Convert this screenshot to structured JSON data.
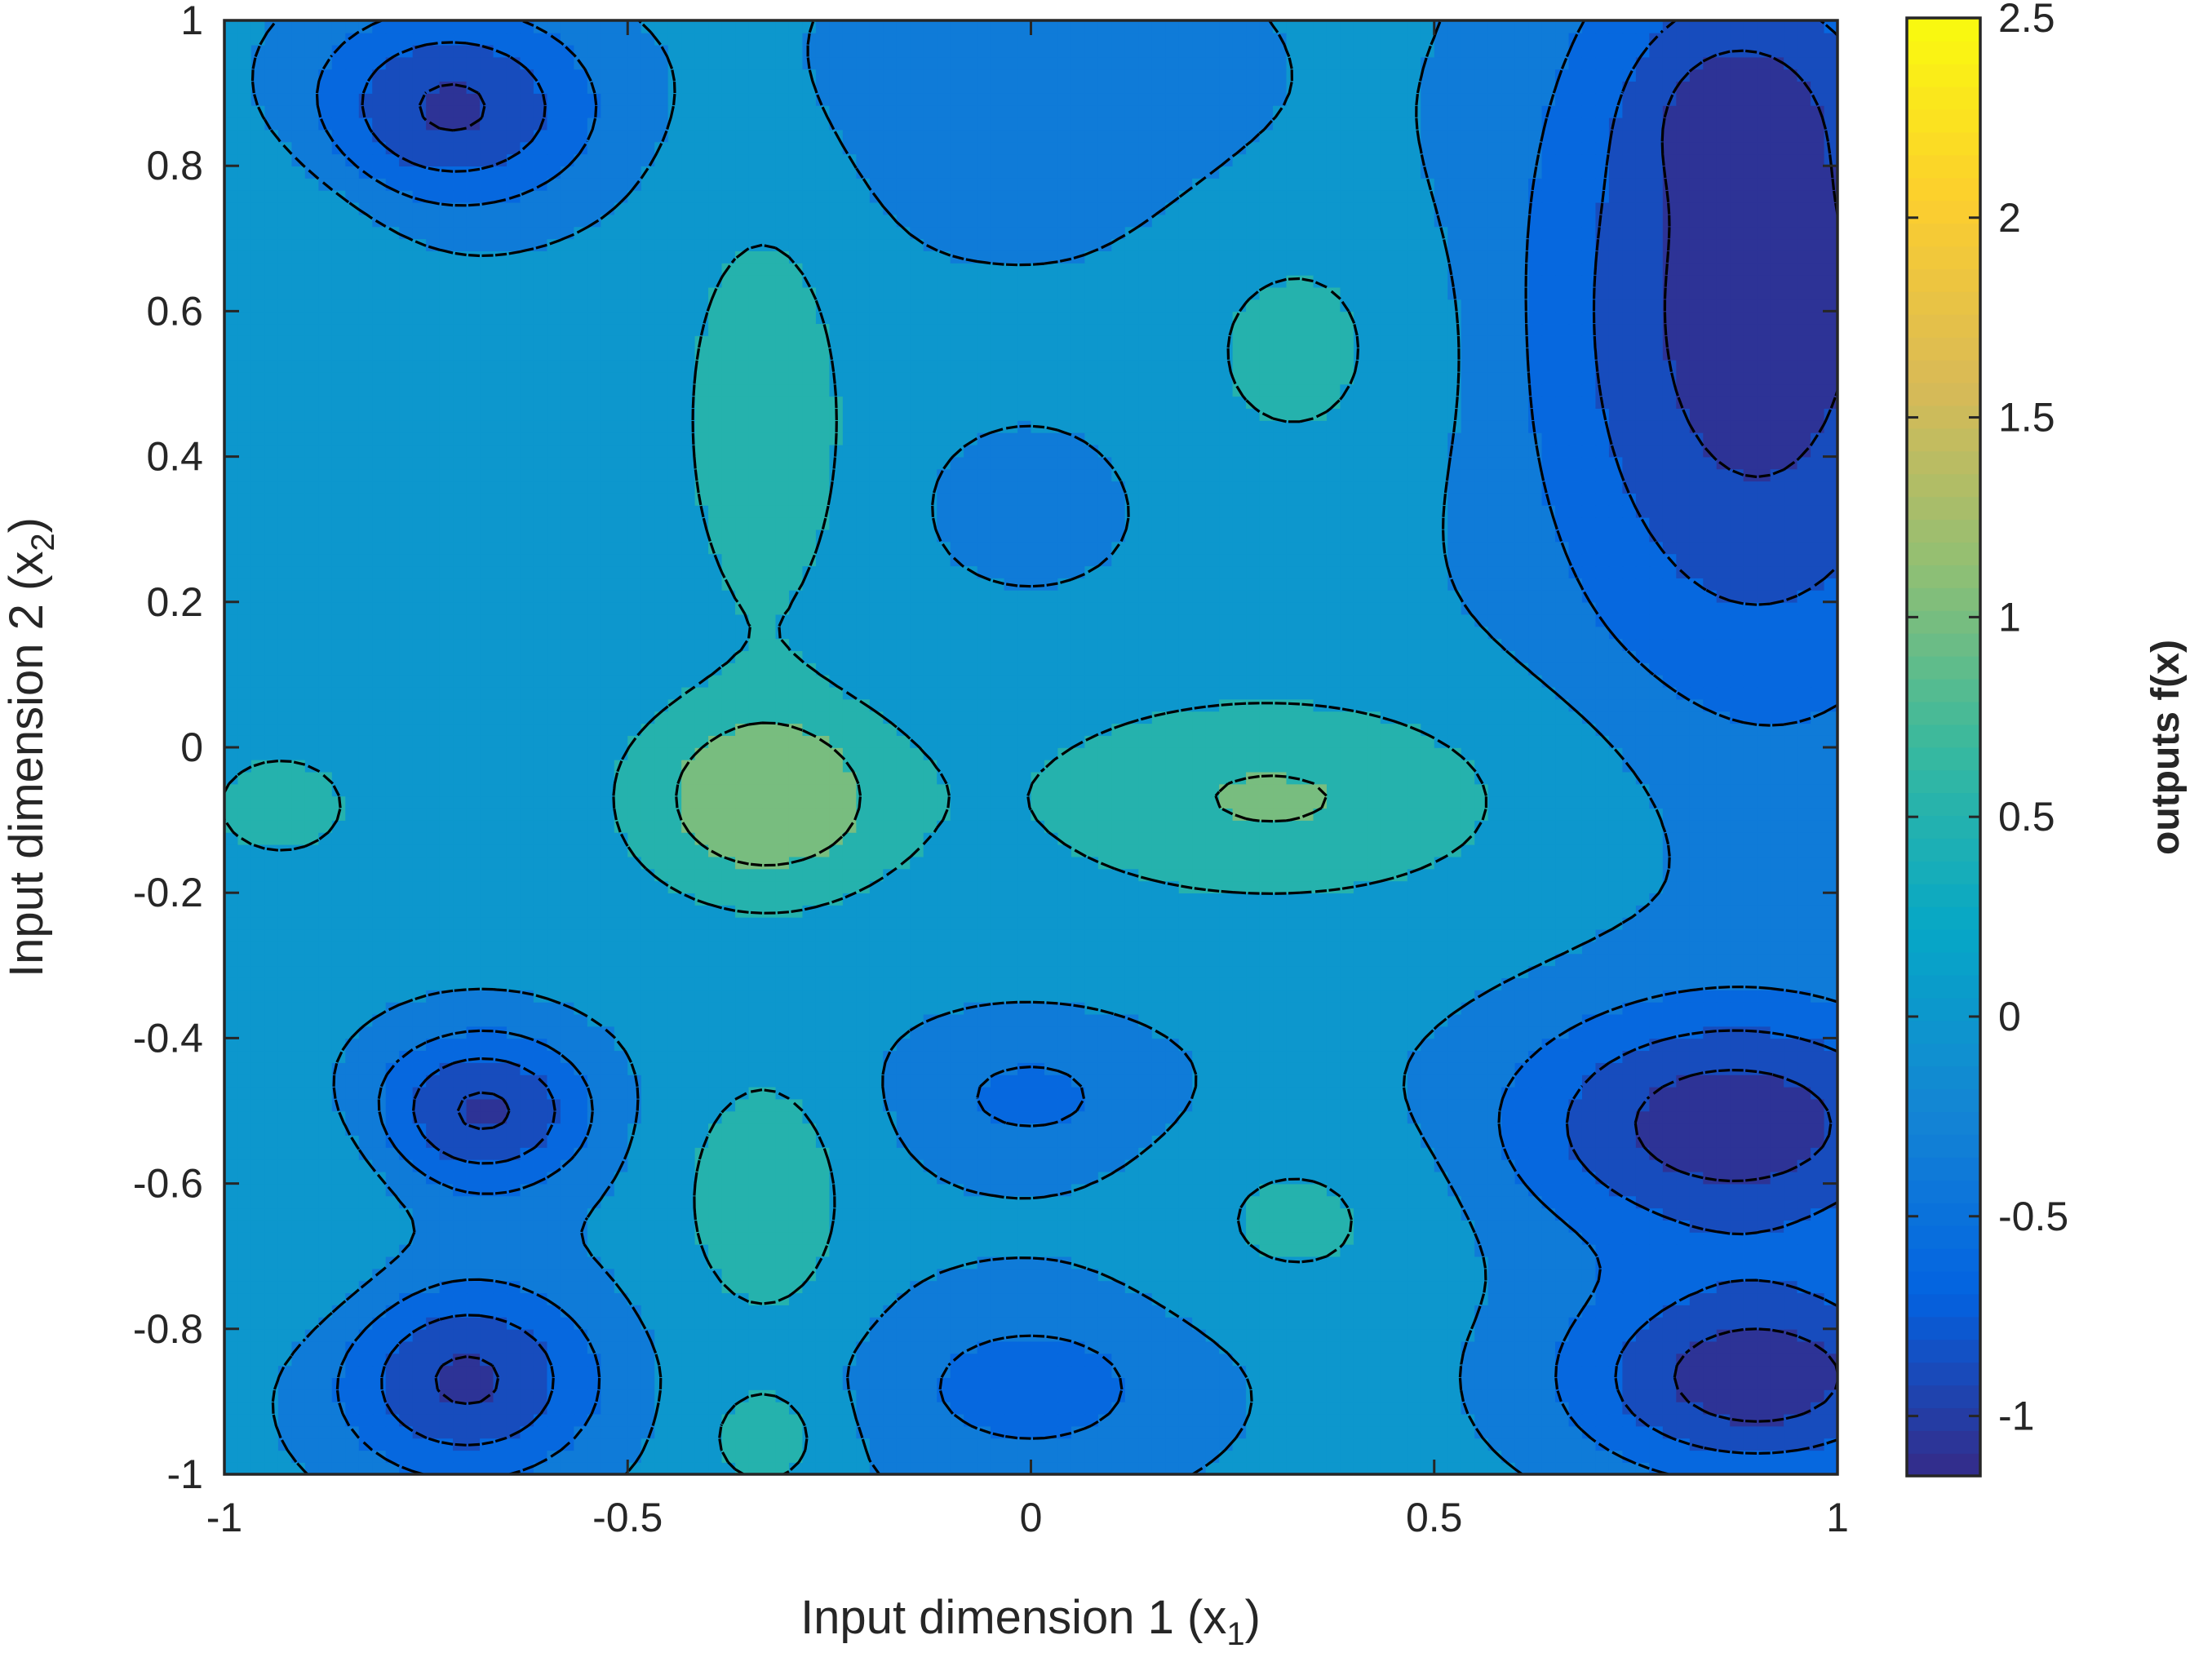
{
  "chart_data": {
    "type": "heatmap",
    "subtype": "filled-contour",
    "title": "",
    "xlabel": {
      "text": "Input dimension 1 (x",
      "sub": "1",
      "close": ")"
    },
    "ylabel": {
      "text": "Input dimension 2 (x",
      "sub": "2",
      "close": ")"
    },
    "colorbar_label": "outputs f(x)",
    "xlim": [
      -1,
      1
    ],
    "ylim": [
      -1,
      1
    ],
    "clim": [
      -1.15,
      2.5
    ],
    "x_ticks": [
      -1,
      -0.5,
      0,
      0.5,
      1
    ],
    "x_tick_labels": [
      "-1",
      "-0.5",
      "0",
      "0.5",
      "1"
    ],
    "y_ticks": [
      1,
      0.8,
      0.6,
      0.4,
      0.2,
      0,
      -0.2,
      -0.4,
      -0.6,
      -0.8,
      -1
    ],
    "y_tick_labels": [
      "1",
      "0.8",
      "0.6",
      "0.4",
      "0.2",
      "0",
      "-0.2",
      "-0.4",
      "-0.6",
      "-0.8",
      "-1"
    ],
    "colorbar_ticks": [
      2.5,
      2,
      1.5,
      1,
      0.5,
      0,
      -0.5,
      -1
    ],
    "colorbar_tick_labels": [
      "2.5",
      "2",
      "1.5",
      "1",
      "0.5",
      "0",
      "-0.5",
      "-1"
    ],
    "contour_levels": [
      -1,
      -0.75,
      -0.5,
      -0.25,
      0.25,
      0.75,
      1.25,
      1.75,
      2.25
    ],
    "contour_line_style": "dashed",
    "colormap": "parula",
    "colormap_stops": [
      "#352a87",
      "#0363e1",
      "#1485d4",
      "#06a7c6",
      "#38b99e",
      "#92bf73",
      "#d9ba56",
      "#fcce2e",
      "#f9fb0e"
    ],
    "grid": false,
    "legend": "none",
    "field": {
      "base": -0.15,
      "peaks": [
        {
          "x": -0.33,
          "y": -0.07,
          "amplitude": 1.35,
          "sx": 0.12,
          "sy": 0.1
        },
        {
          "x": 0.3,
          "y": -0.07,
          "amplitude": 0.95,
          "sx": 0.22,
          "sy": 0.1
        },
        {
          "x": -0.93,
          "y": -0.08,
          "amplitude": 0.85,
          "sx": 0.06,
          "sy": 0.05
        },
        {
          "x": -0.33,
          "y": 0.45,
          "amplitude": 0.9,
          "sx": 0.07,
          "sy": 0.2
        },
        {
          "x": -0.33,
          "y": -0.62,
          "amplitude": 0.9,
          "sx": 0.07,
          "sy": 0.12
        },
        {
          "x": 0.33,
          "y": 0.55,
          "amplitude": 0.6,
          "sx": 0.1,
          "sy": 0.12
        },
        {
          "x": 0.33,
          "y": -0.65,
          "amplitude": 0.55,
          "sx": 0.1,
          "sy": 0.08
        },
        {
          "x": -0.33,
          "y": -0.95,
          "amplitude": 0.8,
          "sx": 0.05,
          "sy": 0.05
        },
        {
          "x": -0.95,
          "y": 0.6,
          "amplitude": 0.4,
          "sx": 0.1,
          "sy": 0.15
        },
        {
          "x": -0.95,
          "y": -0.65,
          "amplitude": 0.4,
          "sx": 0.1,
          "sy": 0.1
        },
        {
          "x": -0.72,
          "y": 0.88,
          "amplitude": -0.9,
          "sx": 0.13,
          "sy": 0.1
        },
        {
          "x": -0.68,
          "y": -0.5,
          "amplitude": -0.9,
          "sx": 0.1,
          "sy": 0.08
        },
        {
          "x": -0.7,
          "y": -0.87,
          "amplitude": -0.9,
          "sx": 0.12,
          "sy": 0.1
        },
        {
          "x": 0.0,
          "y": 0.9,
          "amplitude": -0.35,
          "sx": 0.2,
          "sy": 0.15
        },
        {
          "x": 0.0,
          "y": 0.33,
          "amplitude": -0.35,
          "sx": 0.08,
          "sy": 0.07
        },
        {
          "x": 0.0,
          "y": -0.48,
          "amplitude": -0.4,
          "sx": 0.13,
          "sy": 0.08
        },
        {
          "x": 0.0,
          "y": -0.88,
          "amplitude": -0.45,
          "sx": 0.16,
          "sy": 0.1
        },
        {
          "x": 0.9,
          "y": 0.6,
          "amplitude": -1.0,
          "sx": 0.2,
          "sy": 0.4
        },
        {
          "x": 0.87,
          "y": 0.88,
          "amplitude": -0.3,
          "sx": 0.08,
          "sy": 0.08
        },
        {
          "x": 0.87,
          "y": -0.52,
          "amplitude": -1.0,
          "sx": 0.2,
          "sy": 0.12
        },
        {
          "x": 0.9,
          "y": -0.87,
          "amplitude": -1.0,
          "sx": 0.17,
          "sy": 0.1
        }
      ]
    }
  }
}
